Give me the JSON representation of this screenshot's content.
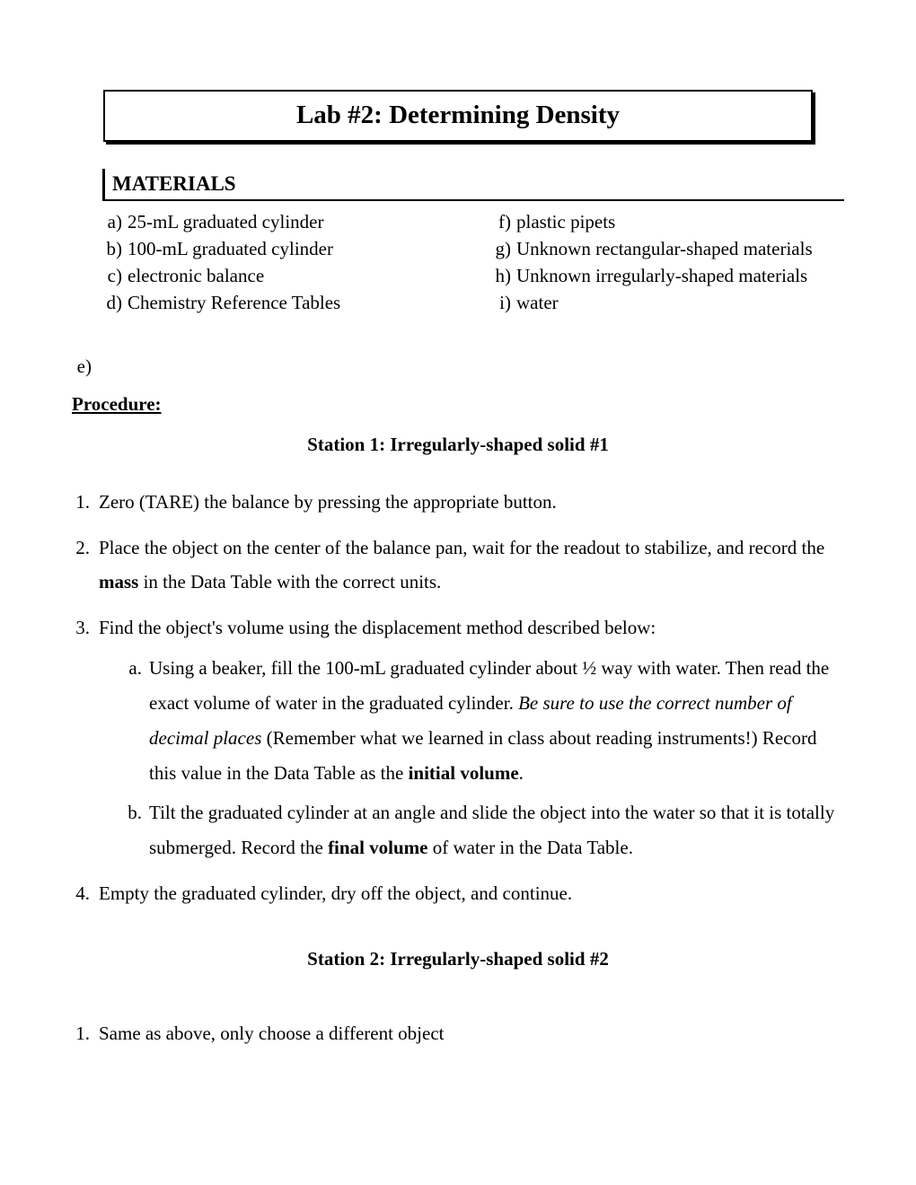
{
  "title": "Lab #2: Determining Density",
  "materials_heading": "MATERIALS",
  "materials_left": [
    {
      "label": "a)",
      "text": "25-mL graduated cylinder"
    },
    {
      "label": "b)",
      "text": "100-mL graduated cylinder"
    },
    {
      "label": "c)",
      "text": "electronic balance"
    },
    {
      "label": "d)",
      "text": "Chemistry Reference Tables"
    }
  ],
  "materials_orphan": {
    "label": "e)",
    "text": ""
  },
  "materials_right": [
    {
      "label": "f)",
      "text": "plastic pipets"
    },
    {
      "label": "g)",
      "text": "Unknown rectangular-shaped materials"
    },
    {
      "label": "h)",
      "text": "Unknown irregularly-shaped materials"
    },
    {
      "label": "i)",
      "text": "water"
    }
  ],
  "procedure_heading": "Procedure:",
  "station1_heading": "Station 1: Irregularly-shaped solid #1",
  "station2_heading": "Station 2: Irregularly-shaped solid #2",
  "proc": {
    "p1": {
      "num": "1.",
      "text": "Zero (TARE) the balance by pressing the appropriate button."
    },
    "p2": {
      "num": "2.",
      "pre": "Place the object on the center of the balance pan, wait for the readout to stabilize, and record the ",
      "bold": "mass",
      "post": " in the Data Table with the correct units."
    },
    "p3": {
      "num": "3.",
      "text": "Find the object's volume using the displacement method described below:",
      "a": {
        "label": "a.",
        "pre": "Using a beaker, fill the 100-mL graduated cylinder about ½ way with water.  Then read the exact volume of water in the graduated cylinder.   ",
        "italic": "Be sure to use the correct number of decimal places",
        "mid": " (Remember what we learned in class about reading instruments!) Record this value in the Data Table as the ",
        "bold": "initial volume",
        "post": "."
      },
      "b": {
        "label": "b.",
        "pre": "Tilt the graduated cylinder at an angle and slide the object into the water so that it is totally submerged.  Record the ",
        "bold": "final volume",
        "post": " of water in the Data Table."
      }
    },
    "p4": {
      "num": "4.",
      "text": "Empty the graduated cylinder, dry off the object, and continue."
    }
  },
  "station2_proc": {
    "p1": {
      "num": "1.",
      "text": "Same as above, only choose a different object"
    }
  }
}
